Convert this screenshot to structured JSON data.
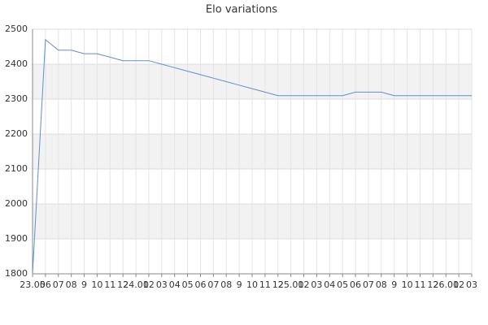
{
  "chart_data": {
    "type": "line",
    "title": "Elo variations",
    "categories": [
      "23.05",
      "06",
      "07",
      "08",
      "9",
      "10",
      "11",
      "12",
      "24.01",
      "02",
      "03",
      "04",
      "05",
      "06",
      "07",
      "08",
      "9",
      "10",
      "11",
      "12",
      "25.01",
      "02",
      "03",
      "04",
      "05",
      "06",
      "07",
      "08",
      "9",
      "10",
      "11",
      "12",
      "26.01",
      "02",
      "03"
    ],
    "series": [
      {
        "color": "#5b8fd8",
        "values": [
          1800,
          2470,
          2440,
          2440,
          2430,
          2430,
          2420,
          2410,
          2410,
          2410,
          2400,
          2390,
          2380,
          2370,
          2360,
          2350,
          2340,
          2330,
          2320,
          2310,
          2310,
          2310,
          2310,
          2310,
          2310,
          2320,
          2320,
          2320,
          2310,
          2310,
          2310,
          2310,
          2310,
          2310,
          2310
        ]
      }
    ],
    "ylim": [
      1800,
      2500
    ],
    "yticks": [
      1800,
      1900,
      2000,
      2100,
      2200,
      2300,
      2400,
      2500
    ],
    "grid": true
  }
}
